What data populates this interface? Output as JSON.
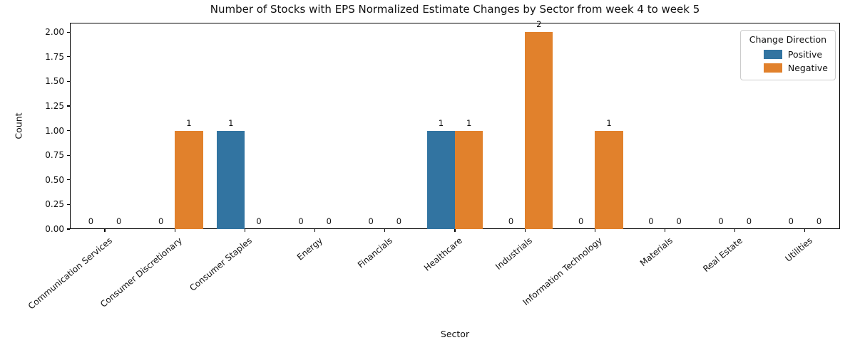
{
  "chart_data": {
    "type": "bar",
    "title": "Number of Stocks with EPS Normalized Estimate Changes by Sector from week 4 to week 5",
    "xlabel": "Sector",
    "ylabel": "Count",
    "categories": [
      "Communication Services",
      "Consumer Discretionary",
      "Consumer Staples",
      "Energy",
      "Financials",
      "Healthcare",
      "Industrials",
      "Information Technology",
      "Materials",
      "Real Estate",
      "Utilities"
    ],
    "series": [
      {
        "name": "Positive",
        "color": "#3274a1",
        "values": [
          0,
          0,
          1,
          0,
          0,
          1,
          0,
          0,
          0,
          0,
          0
        ]
      },
      {
        "name": "Negative",
        "color": "#e1812c",
        "values": [
          0,
          1,
          0,
          0,
          0,
          1,
          2,
          1,
          0,
          0,
          0
        ]
      }
    ],
    "legend": {
      "title": "Change Direction",
      "position": "upper right"
    },
    "ylim": [
      0,
      2.095
    ],
    "yticks": [
      "0.00",
      "0.25",
      "0.50",
      "0.75",
      "1.00",
      "1.25",
      "1.50",
      "1.75",
      "2.00"
    ],
    "grid": false,
    "bar_value_labels": true,
    "x_tick_rotation_deg": 40
  }
}
